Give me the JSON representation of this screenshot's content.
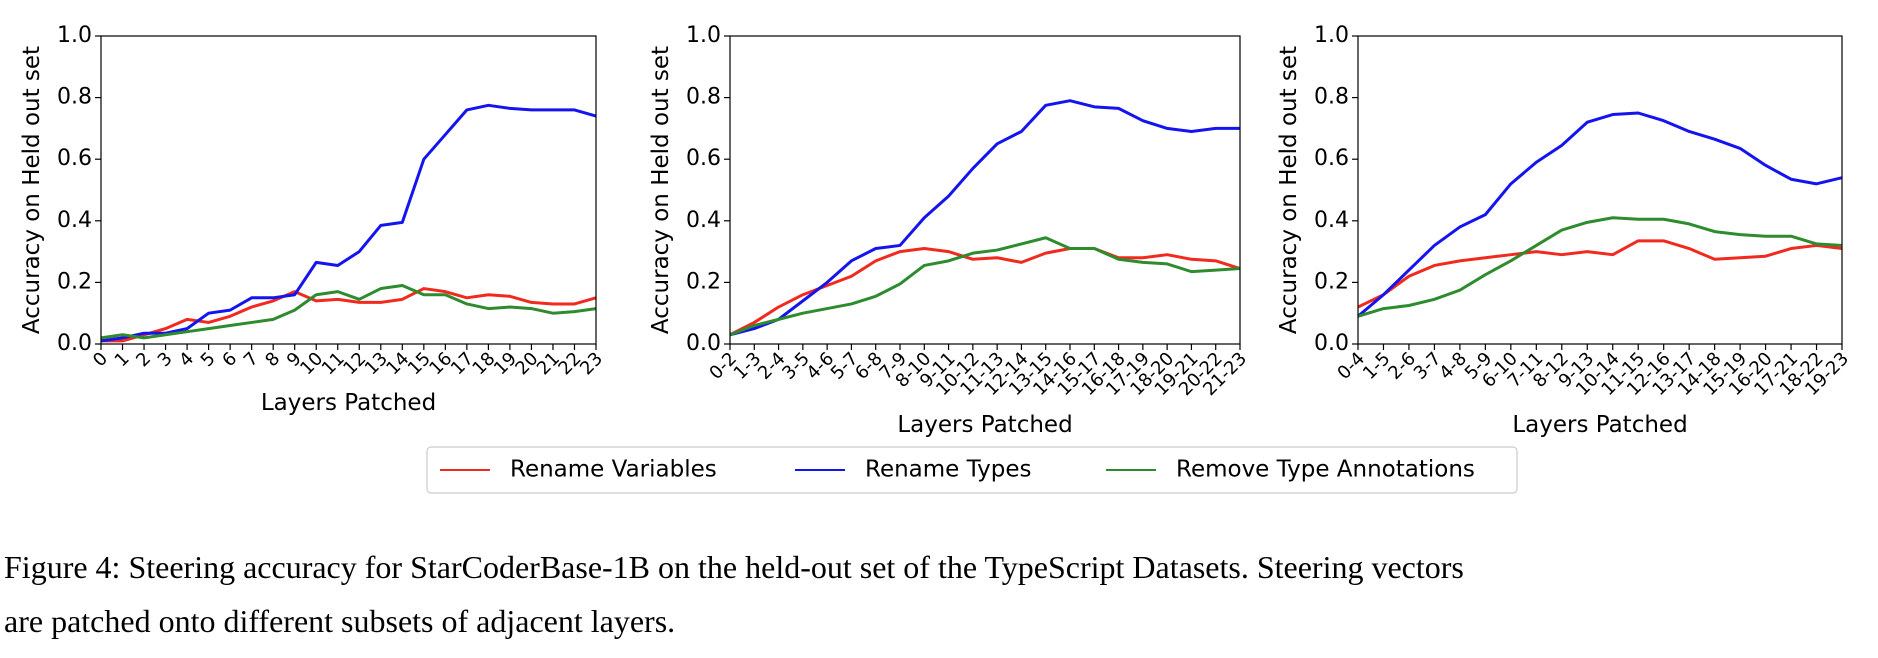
{
  "chart_data": [
    {
      "type": "line",
      "xlabel": "Layers Patched",
      "ylabel": "Accuracy on Held out set",
      "categories": [
        "0",
        "1",
        "2",
        "3",
        "4",
        "5",
        "6",
        "7",
        "8",
        "9",
        "10",
        "11",
        "12",
        "13",
        "14",
        "15",
        "16",
        "17",
        "18",
        "19",
        "20",
        "21",
        "22",
        "23"
      ],
      "ylim": [
        0,
        1
      ],
      "yticks": [
        {
          "value": 0,
          "label": "0.0"
        },
        {
          "value": 0.2,
          "label": "0.2"
        },
        {
          "value": 0.4,
          "label": "0.4"
        },
        {
          "value": 0.6,
          "label": "0.6"
        },
        {
          "value": 0.8,
          "label": "0.8"
        },
        {
          "value": 1,
          "label": "1.0"
        }
      ],
      "series": [
        {
          "name": "Rename Variables",
          "color": "#f02a1e",
          "values": [
            0.01,
            0.01,
            0.03,
            0.05,
            0.08,
            0.07,
            0.09,
            0.12,
            0.14,
            0.17,
            0.14,
            0.145,
            0.135,
            0.135,
            0.145,
            0.18,
            0.17,
            0.15,
            0.16,
            0.155,
            0.135,
            0.13,
            0.13,
            0.15
          ]
        },
        {
          "name": "Rename Types",
          "color": "#1414ee",
          "values": [
            0.01,
            0.02,
            0.035,
            0.035,
            0.05,
            0.1,
            0.11,
            0.15,
            0.15,
            0.16,
            0.265,
            0.255,
            0.3,
            0.385,
            0.395,
            0.6,
            0.68,
            0.76,
            0.775,
            0.765,
            0.76,
            0.76,
            0.76,
            0.74
          ]
        },
        {
          "name": "Remove Type Annotations",
          "color": "#2e8b2e",
          "values": [
            0.02,
            0.03,
            0.02,
            0.03,
            0.04,
            0.05,
            0.06,
            0.07,
            0.08,
            0.11,
            0.16,
            0.17,
            0.145,
            0.18,
            0.19,
            0.16,
            0.16,
            0.13,
            0.115,
            0.12,
            0.115,
            0.1,
            0.105,
            0.115
          ]
        }
      ]
    },
    {
      "type": "line",
      "xlabel": "Layers Patched",
      "ylabel": "Accuracy on Held out set",
      "categories": [
        "0-2",
        "1-3",
        "2-4",
        "3-5",
        "4-6",
        "5-7",
        "6-8",
        "7-9",
        "8-10",
        "9-11",
        "10-12",
        "11-13",
        "12-14",
        "13-15",
        "14-16",
        "15-17",
        "16-18",
        "17-19",
        "18-20",
        "19-21",
        "20-22",
        "21-23"
      ],
      "ylim": [
        0,
        1
      ],
      "yticks": [
        {
          "value": 0,
          "label": "0.0"
        },
        {
          "value": 0.2,
          "label": "0.2"
        },
        {
          "value": 0.4,
          "label": "0.4"
        },
        {
          "value": 0.6,
          "label": "0.6"
        },
        {
          "value": 0.8,
          "label": "0.8"
        },
        {
          "value": 1,
          "label": "1.0"
        }
      ],
      "series": [
        {
          "name": "Rename Variables",
          "color": "#f02a1e",
          "values": [
            0.03,
            0.07,
            0.12,
            0.16,
            0.19,
            0.22,
            0.27,
            0.3,
            0.31,
            0.3,
            0.275,
            0.28,
            0.265,
            0.295,
            0.31,
            0.31,
            0.28,
            0.28,
            0.29,
            0.275,
            0.27,
            0.245
          ]
        },
        {
          "name": "Rename Types",
          "color": "#1414ee",
          "values": [
            0.03,
            0.05,
            0.08,
            0.14,
            0.2,
            0.27,
            0.31,
            0.32,
            0.41,
            0.48,
            0.57,
            0.65,
            0.69,
            0.775,
            0.79,
            0.77,
            0.765,
            0.725,
            0.7,
            0.69,
            0.7,
            0.7
          ]
        },
        {
          "name": "Remove Type Annotations",
          "color": "#2e8b2e",
          "values": [
            0.03,
            0.06,
            0.08,
            0.1,
            0.115,
            0.13,
            0.155,
            0.195,
            0.255,
            0.27,
            0.295,
            0.305,
            0.325,
            0.345,
            0.31,
            0.31,
            0.275,
            0.265,
            0.26,
            0.235,
            0.24,
            0.245
          ]
        }
      ]
    },
    {
      "type": "line",
      "xlabel": "Layers Patched",
      "ylabel": "Accuracy on Held out set",
      "categories": [
        "0-4",
        "1-5",
        "2-6",
        "3-7",
        "4-8",
        "5-9",
        "6-10",
        "7-11",
        "8-12",
        "9-13",
        "10-14",
        "11-15",
        "12-16",
        "13-17",
        "14-18",
        "15-19",
        "16-20",
        "17-21",
        "18-22",
        "19-23"
      ],
      "ylim": [
        0,
        1
      ],
      "yticks": [
        {
          "value": 0,
          "label": "0.0"
        },
        {
          "value": 0.2,
          "label": "0.2"
        },
        {
          "value": 0.4,
          "label": "0.4"
        },
        {
          "value": 0.6,
          "label": "0.6"
        },
        {
          "value": 0.8,
          "label": "0.8"
        },
        {
          "value": 1,
          "label": "1.0"
        }
      ],
      "series": [
        {
          "name": "Rename Variables",
          "color": "#f02a1e",
          "values": [
            0.12,
            0.16,
            0.22,
            0.255,
            0.27,
            0.28,
            0.29,
            0.3,
            0.29,
            0.3,
            0.29,
            0.335,
            0.335,
            0.31,
            0.275,
            0.28,
            0.285,
            0.31,
            0.32,
            0.31
          ]
        },
        {
          "name": "Rename Types",
          "color": "#1414ee",
          "values": [
            0.09,
            0.16,
            0.24,
            0.32,
            0.38,
            0.42,
            0.52,
            0.59,
            0.645,
            0.72,
            0.745,
            0.75,
            0.725,
            0.69,
            0.665,
            0.635,
            0.58,
            0.535,
            0.52,
            0.54
          ]
        },
        {
          "name": "Remove Type Annotations",
          "color": "#2e8b2e",
          "values": [
            0.09,
            0.115,
            0.125,
            0.145,
            0.175,
            0.225,
            0.27,
            0.32,
            0.37,
            0.395,
            0.41,
            0.405,
            0.405,
            0.39,
            0.365,
            0.355,
            0.35,
            0.35,
            0.325,
            0.32
          ]
        }
      ]
    }
  ],
  "caption": [
    "Figure 4: Steering accuracy for StarCoderBase-1B on the held-out set of the TypeScript Datasets. Steering vectors",
    "are patched onto different subsets of adjacent layers."
  ]
}
